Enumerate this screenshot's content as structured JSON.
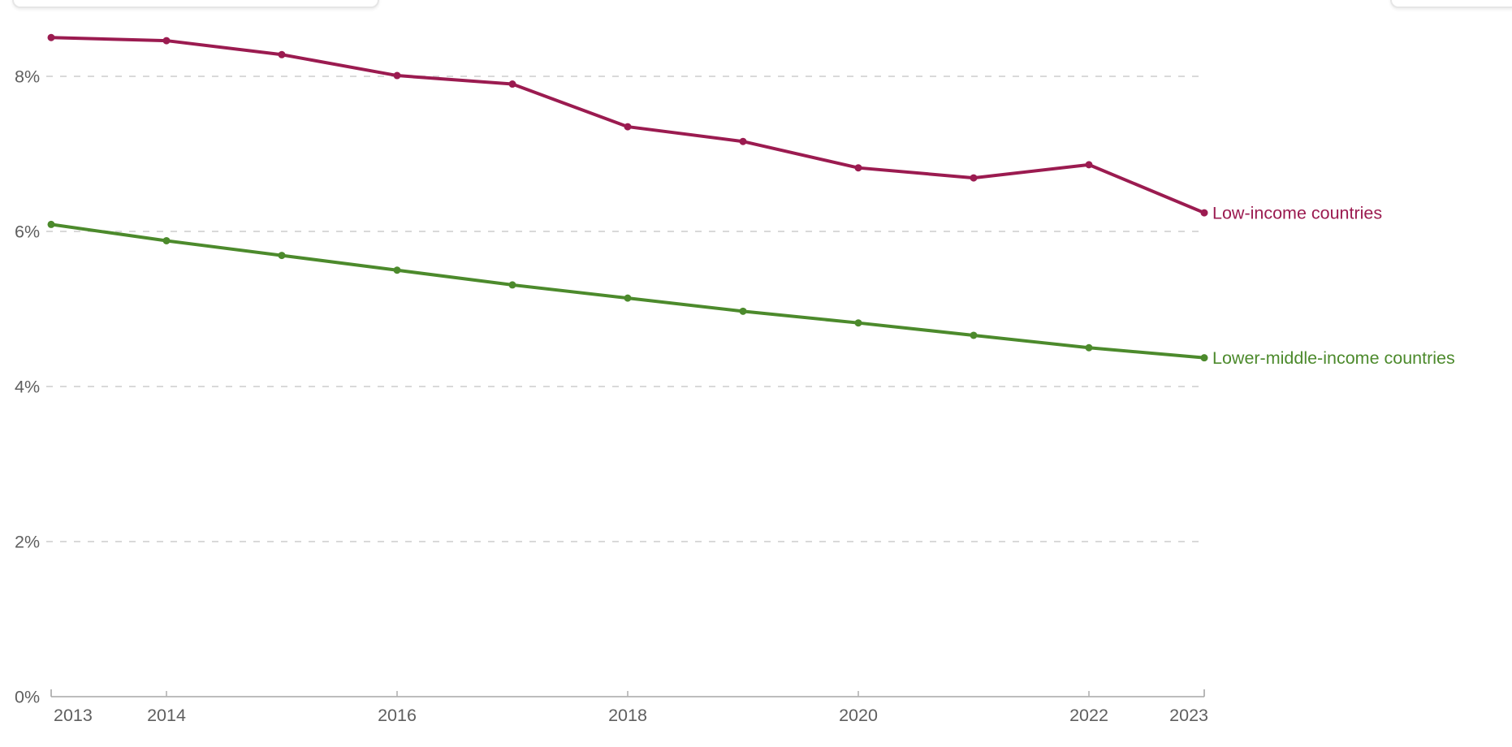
{
  "chart_data": {
    "type": "line",
    "title": "",
    "x_label": "",
    "y_label": "",
    "x": [
      2013,
      2014,
      2015,
      2016,
      2017,
      2018,
      2019,
      2020,
      2021,
      2022,
      2023
    ],
    "series": [
      {
        "name": "Low-income countries",
        "color": "#9B1B50",
        "values": [
          8.5,
          8.46,
          8.28,
          8.01,
          7.9,
          7.35,
          7.16,
          6.82,
          6.69,
          6.86,
          6.24
        ]
      },
      {
        "name": "Lower-middle-income countries",
        "color": "#4C8A2C",
        "values": [
          6.09,
          5.88,
          5.69,
          5.5,
          5.31,
          5.14,
          4.97,
          4.82,
          4.66,
          4.5,
          4.37
        ]
      }
    ],
    "y_ticks": [
      {
        "value": 0,
        "label": "0%"
      },
      {
        "value": 2,
        "label": "2%"
      },
      {
        "value": 4,
        "label": "4%"
      },
      {
        "value": 6,
        "label": "6%"
      },
      {
        "value": 8,
        "label": "8%"
      }
    ],
    "x_tick_labeled_years": [
      2013,
      2014,
      2016,
      2018,
      2020,
      2022,
      2023
    ],
    "x_tick_marked_years": [
      2014,
      2016,
      2018,
      2020,
      2022
    ],
    "ylim": [
      0,
      8.9
    ],
    "xlim": [
      2013,
      2023
    ],
    "grid": "horizontal-dashed",
    "legend_position": "line-end-labels",
    "marker": "circle",
    "colors": {
      "gridline": "#d9d9d9",
      "axis_line": "#a7a7a7",
      "tick_text": "#5f5f5f"
    }
  }
}
